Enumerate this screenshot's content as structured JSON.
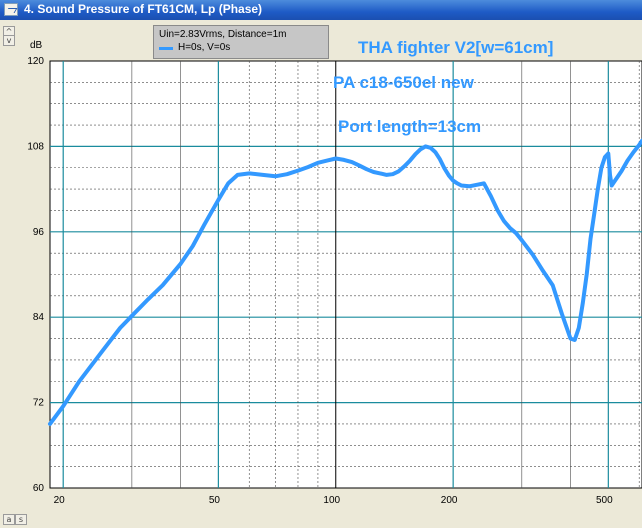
{
  "window": {
    "title": "4. Sound Pressure of FT61CM, Lp (Phase)"
  },
  "legend": {
    "line1": "Uin=2.83Vrms, Distance=1m",
    "series_label": "H=0s, V=0s"
  },
  "side_buttons": [
    "^",
    "v"
  ],
  "bottom_buttons": [
    "a",
    "s"
  ],
  "colors": {
    "series": "#3399ff",
    "grid_major": "#1a8c9e",
    "grid_minor": "#4a4a4a",
    "plot_bg": "#ffffff",
    "annotation": "#3399ff"
  },
  "chart_data": {
    "type": "line",
    "x_scale": "log",
    "xlim": [
      18.5,
      610
    ],
    "ylim": [
      60,
      120
    ],
    "ylabel": "dB",
    "x_ticks": [
      20,
      50,
      100,
      200,
      500
    ],
    "y_ticks": [
      60,
      72,
      84,
      96,
      108,
      120
    ],
    "annotations": [
      "THA fighter V2[w=61cm]",
      "PA c18-650el new",
      "Port length=13cm"
    ],
    "series": [
      {
        "name": "H=0s, V=0s",
        "x": [
          18.5,
          20,
          22,
          25,
          28,
          30,
          33,
          36,
          40,
          43,
          46,
          50,
          53,
          56,
          60,
          65,
          70,
          75,
          80,
          85,
          90,
          95,
          100,
          105,
          110,
          115,
          120,
          125,
          130,
          135,
          140,
          145,
          150,
          155,
          160,
          165,
          170,
          175,
          180,
          185,
          190,
          195,
          200,
          205,
          210,
          220,
          230,
          240,
          250,
          260,
          270,
          280,
          290,
          300,
          320,
          340,
          360,
          380,
          400,
          410,
          420,
          430,
          440,
          450,
          460,
          470,
          480,
          490,
          500,
          505,
          510,
          520,
          540,
          560,
          580,
          600,
          610
        ],
        "y": [
          69.0,
          71.5,
          75.0,
          79.0,
          82.5,
          84.2,
          86.5,
          88.5,
          91.5,
          94.0,
          97.0,
          100.5,
          102.8,
          104.0,
          104.2,
          104.0,
          103.8,
          104.1,
          104.6,
          105.1,
          105.7,
          106.0,
          106.3,
          106.1,
          105.8,
          105.3,
          104.8,
          104.4,
          104.2,
          104.0,
          104.1,
          104.5,
          105.2,
          106.0,
          106.9,
          107.6,
          108.0,
          107.8,
          107.2,
          106.2,
          104.9,
          103.9,
          103.2,
          102.8,
          102.5,
          102.4,
          102.6,
          102.8,
          101.0,
          99.0,
          97.5,
          96.5,
          95.8,
          94.8,
          92.8,
          90.5,
          88.5,
          84.5,
          81.0,
          80.8,
          82.5,
          86.0,
          90.0,
          95.0,
          98.5,
          102.0,
          105.0,
          106.5,
          107.0,
          104.0,
          102.5,
          103.2,
          104.5,
          106.0,
          107.2,
          108.2,
          108.8
        ]
      }
    ]
  }
}
